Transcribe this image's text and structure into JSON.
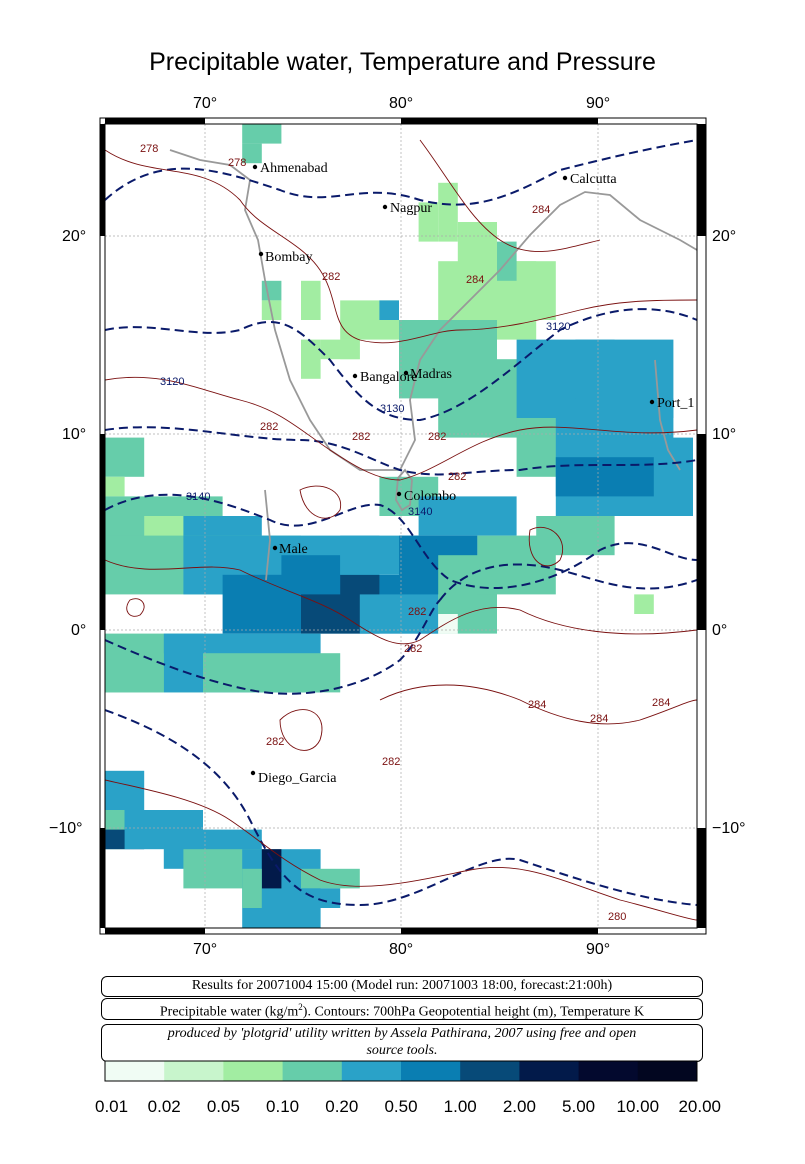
{
  "title": "Precipitable water, Temperature and Pressure",
  "axes": {
    "lon_ticks": [
      "70°",
      "80°",
      "90°"
    ],
    "lat_ticks": [
      "20°",
      "10°",
      "0°",
      "−10°"
    ]
  },
  "cities": [
    "Ahmenabad",
    "Calcutta",
    "Nagpur",
    "Bombay",
    "Madras",
    "Bangalore",
    "Port_1",
    "Colombo",
    "Male",
    "Diego_Garcia"
  ],
  "contour_labels": {
    "temperature": [
      "278",
      "278",
      "282",
      "284",
      "284",
      "282",
      "282",
      "282",
      "282",
      "282",
      "282",
      "282",
      "282",
      "284",
      "284",
      "284",
      "280"
    ],
    "geopotential": [
      "3120",
      "3120",
      "3130",
      "3140",
      "3140"
    ]
  },
  "info_boxes": {
    "run_info": "Results for 20071004 15:00 (Model run: 20071003 18:00, forecast:21:00h)",
    "fields_prefix": "Precipitable water (kg/m",
    "fields_sup": "2",
    "fields_suffix": ").  Contours: 700hPa Geopotential height (m), Temperature K",
    "credit_line1": "produced by 'plotgrid' utility written by Assela Pathirana, 2007 using free and open",
    "credit_line2": "source tools."
  },
  "colorbar": {
    "labels": [
      "0.01",
      "0.02",
      "0.05",
      "0.10",
      "0.20",
      "0.50",
      "1.00",
      "2.00",
      "5.00",
      "10.00",
      "20.00"
    ],
    "colors": [
      "#f0fcf4",
      "#c8f5cc",
      "#a2eda2",
      "#66cdaa",
      "#2aa2c8",
      "#0a7eb2",
      "#074a78",
      "#021a4a",
      "#03092e",
      "#020620"
    ]
  }
}
